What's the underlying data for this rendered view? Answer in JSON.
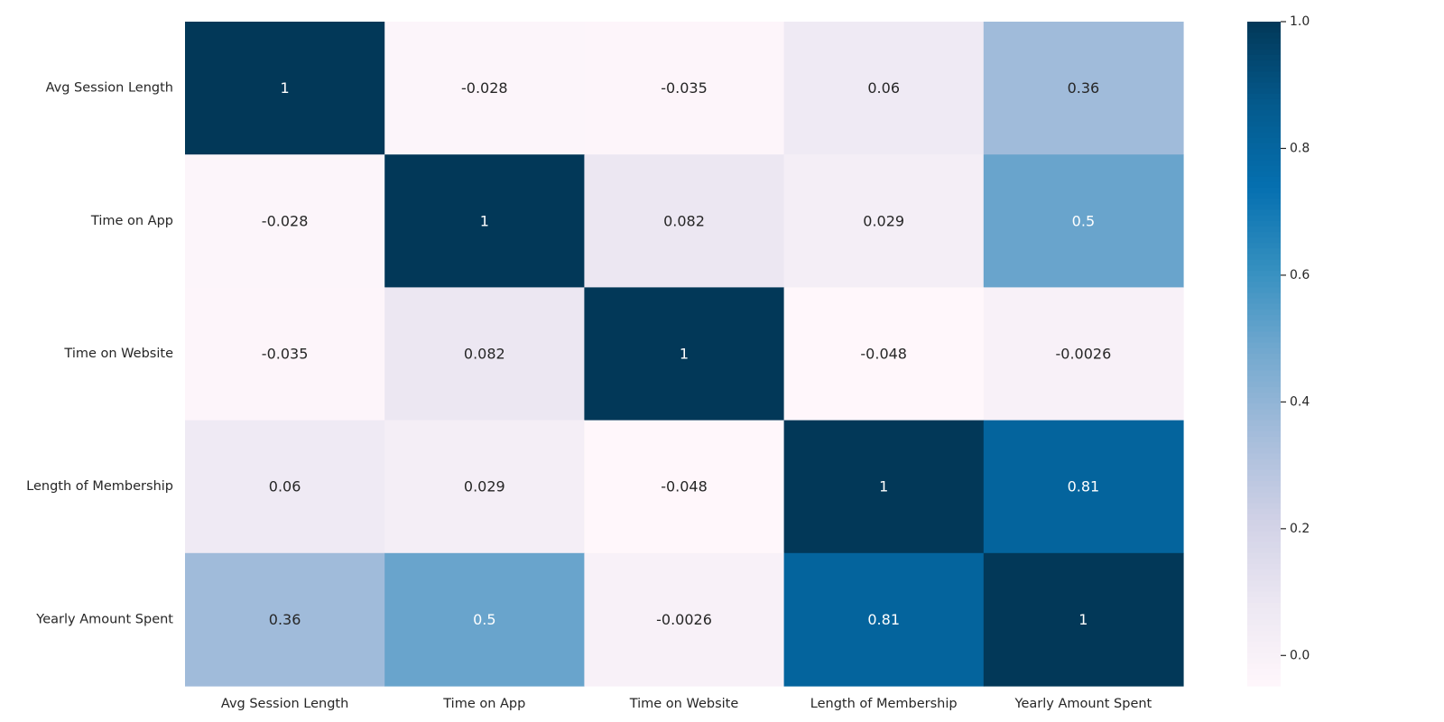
{
  "chart_data": {
    "type": "heatmap",
    "x_labels": [
      "Avg Session Length",
      "Time on App",
      "Time on Website",
      "Length of Membership",
      "Yearly Amount Spent"
    ],
    "y_labels": [
      "Avg Session Length",
      "Time on App",
      "Time on Website",
      "Length of Membership",
      "Yearly Amount Spent"
    ],
    "values": [
      [
        1,
        -0.028,
        -0.035,
        0.06,
        0.36
      ],
      [
        -0.028,
        1,
        0.082,
        0.029,
        0.5
      ],
      [
        -0.035,
        0.082,
        1,
        -0.048,
        -0.0026
      ],
      [
        0.06,
        0.029,
        -0.048,
        1,
        0.81
      ],
      [
        0.36,
        0.5,
        -0.0026,
        0.81,
        1
      ]
    ],
    "annotations": [
      [
        "1",
        "-0.028",
        "-0.035",
        "0.06",
        "0.36"
      ],
      [
        "-0.028",
        "1",
        "0.082",
        "0.029",
        "0.5"
      ],
      [
        "-0.035",
        "0.082",
        "1",
        "-0.048",
        "-0.0026"
      ],
      [
        "0.06",
        "0.029",
        "-0.048",
        "1",
        "0.81"
      ],
      [
        "0.36",
        "0.5",
        "-0.0026",
        "0.81",
        "1"
      ]
    ],
    "colormap": "PuBu",
    "colormap_stops": [
      "#fff7fb",
      "#ece7f2",
      "#d0d1e6",
      "#a6bddb",
      "#74a9cf",
      "#3690c0",
      "#0570b0",
      "#045a8d",
      "#023858"
    ],
    "vmin": -0.048,
    "vmax": 1,
    "colorbar": {
      "ticks": [
        0.0,
        0.2,
        0.4,
        0.6,
        0.8,
        1.0
      ],
      "tick_labels": [
        "0.0",
        "0.2",
        "0.4",
        "0.6",
        "0.8",
        "1.0"
      ]
    },
    "grid": false,
    "legend": "colorbar-right"
  }
}
